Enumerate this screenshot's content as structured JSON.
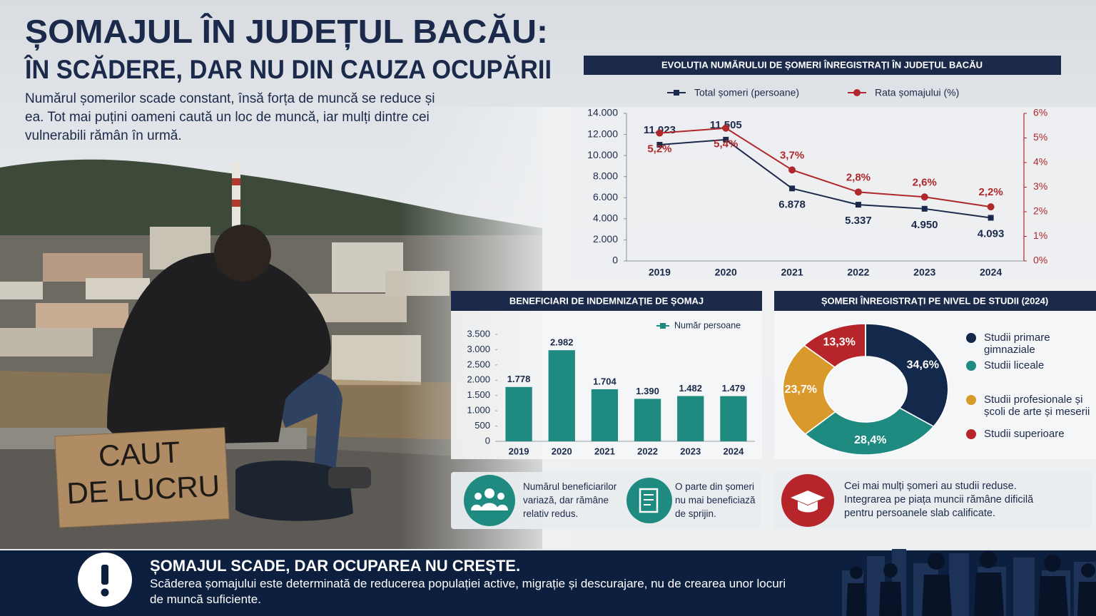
{
  "header": {
    "title_line1": "ȘOMAJUL ÎN JUDEȚUL BACĂU:",
    "title_line2": "ÎN SCĂDERE, DAR NU DIN CAUZA OCUPĂRII",
    "intro": "Numărul șomerilor scade constant, însă forța de muncă se reduce și ea. Tot mai puțini oameni caută un loc de muncă, iar mulți dintre cei vulnerabili rămân în urmă."
  },
  "photo_sign": [
    "CAUT",
    "DE LUCRU"
  ],
  "chart_data": [
    {
      "type": "line",
      "title": "EVOLUȚIA NUMĂRULUI DE ȘOMERI ÎNREGISTRAȚI ÎN JUDEȚUL BACĂU",
      "categories": [
        "2019",
        "2020",
        "2021",
        "2022",
        "2023",
        "2024"
      ],
      "series": [
        {
          "name": "Total șomeri (persoane)",
          "color": "#1b2a4a",
          "values": [
            11023,
            11505,
            6878,
            5337,
            4950,
            4093
          ],
          "value_labels": [
            "11.023",
            "11.505",
            "6.878",
            "5.337",
            "4.950",
            "4.093"
          ]
        },
        {
          "name": "Rata șomajului (%)",
          "color": "#b0282b",
          "axis": "y2",
          "values": [
            5.2,
            5.4,
            3.7,
            2.8,
            2.6,
            2.2
          ],
          "value_labels": [
            "5,2%",
            "5,4%",
            "3,7%",
            "2,8%",
            "2,6%",
            "2,2%"
          ]
        }
      ],
      "ylim": [
        0,
        14000
      ],
      "yticks": [
        0,
        {
          "value": 2000,
          "label": "2.000"
        },
        {
          "value": 4000,
          "label": "4.000"
        },
        {
          "value": 6000,
          "label": "6.000"
        },
        {
          "value": 8000,
          "label": "8.000"
        },
        {
          "value": 10000,
          "label": "10.000"
        },
        {
          "value": 12000,
          "label": "12.000"
        },
        {
          "value": 14000,
          "label": "14.000"
        }
      ],
      "y2lim": [
        0,
        6
      ],
      "y2ticks": [
        {
          "value": 0,
          "label": "0%"
        },
        {
          "value": 1,
          "label": "1%"
        },
        {
          "value": 2,
          "label": "2%"
        },
        {
          "value": 3,
          "label": "3%"
        },
        {
          "value": 4,
          "label": "4%"
        },
        {
          "value": 5,
          "label": "5%"
        },
        {
          "value": 6,
          "label": "6%"
        }
      ]
    },
    {
      "type": "bar",
      "title": "BENEFICIARI DE INDEMNIZAȚIE DE ȘOMAJ",
      "categories": [
        "2019",
        "2020",
        "2021",
        "2022",
        "2023",
        "2024"
      ],
      "series": [
        {
          "name": "Număr persoane",
          "color": "#1e8a80",
          "values": [
            1778,
            2982,
            1704,
            1390,
            1482,
            1479
          ],
          "value_labels": [
            "1.778",
            "2.982",
            "1.704",
            "1.390",
            "1.482",
            "1.479"
          ]
        }
      ],
      "ylim": [
        0,
        3500
      ],
      "yticks": [
        0,
        500,
        {
          "value": 1000,
          "label": "1.000"
        },
        {
          "value": 1500,
          "label": "1.500"
        },
        {
          "value": 2000,
          "label": "2.000"
        },
        {
          "value": 2500,
          "label": "2.500"
        },
        {
          "value": 3000,
          "label": "3.000"
        },
        {
          "value": 3500,
          "label": "3.500"
        }
      ]
    },
    {
      "type": "pie",
      "title": "ȘOMERI ÎNREGISTRAȚI PE NIVEL DE STUDII (2024)",
      "categories": [
        "Studii primare gimnaziale",
        "Studii liceale",
        "Studii profesionale și școli de arte și meserii",
        "Studii superioare"
      ],
      "values": [
        34.6,
        28.4,
        23.7,
        13.3
      ],
      "value_labels": [
        "34,6%",
        "28,4%",
        "23,7%",
        "13,3%"
      ],
      "colors": [
        "#13294b",
        "#1e8a80",
        "#d99a2b",
        "#b5252a"
      ]
    }
  ],
  "notes": {
    "bar_note_1": "Numărul beneficiarilor variază, dar rămâne relativ redus.",
    "bar_note_2": "O parte din șomeri nu mai beneficiază de sprijin.",
    "pie_note": "Cei mai mulți șomeri au studii reduse. Integrarea pe piața muncii rămâne dificilă pentru persoanele slab calificate."
  },
  "footer": {
    "headline": "ȘOMAJUL SCADE, DAR OCUPAREA NU CREȘTE.",
    "text": "Scăderea șomajului este determinată de reducerea populației active, migrație și descurajare, nu de crearea unor locuri de muncă suficiente."
  }
}
